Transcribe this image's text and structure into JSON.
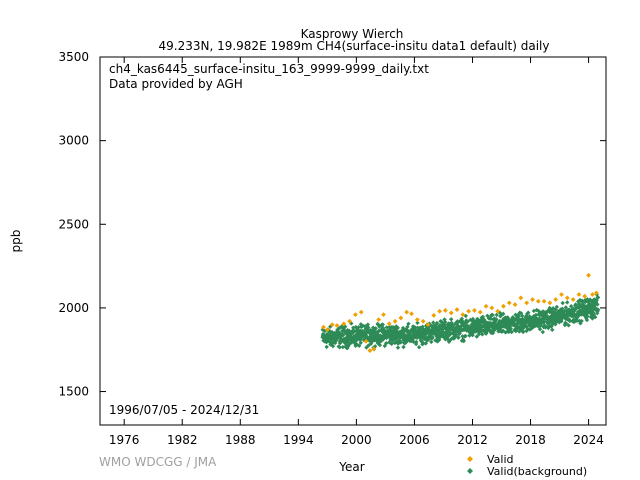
{
  "chart_data": {
    "type": "scatter",
    "title": "Kasprowy Wierch",
    "subtitle": "49.233N, 19.982E 1989m    CH4(surface-insitu data1 default) daily",
    "info_lines": [
      "ch4_kas6445_surface-insitu_163_9999-9999_daily.txt",
      "Data provided by AGH"
    ],
    "date_range": "1996/07/05 - 2024/12/31",
    "credit": "WMO WDCGG / JMA",
    "xlabel": "Year",
    "ylabel": "ppb",
    "xlim": [
      1973.5,
      2025.8
    ],
    "ylim": [
      1300,
      3500
    ],
    "xticks": [
      1976,
      1982,
      1988,
      1994,
      2000,
      2006,
      2012,
      2018,
      2024
    ],
    "yticks": [
      1500,
      2000,
      2500,
      3000,
      3500
    ],
    "legend_position": "bottom-right outside",
    "series": [
      {
        "name": "Valid",
        "color": "#f0a000",
        "x": [
          1996.6,
          1997.0,
          1997.5,
          1998.0,
          1998.7,
          1999.3,
          1999.9,
          2000.5,
          2001.0,
          2001.4,
          2001.8,
          2002.3,
          2002.8,
          2003.4,
          2004.0,
          2004.6,
          2005.2,
          2005.7,
          2006.3,
          2006.9,
          2007.4,
          2008.0,
          2008.6,
          2009.2,
          2009.8,
          2010.4,
          2011.0,
          2011.6,
          2012.2,
          2012.8,
          2013.4,
          2014.0,
          2014.6,
          2015.2,
          2015.8,
          2016.4,
          2017.0,
          2017.6,
          2018.2,
          2018.8,
          2019.4,
          2020.0,
          2020.6,
          2021.2,
          2021.8,
          2022.4,
          2023.0,
          2023.6,
          2024.0,
          2024.4,
          2024.8
        ],
        "y": [
          1885,
          1870,
          1900,
          1895,
          1905,
          1920,
          1960,
          1975,
          1800,
          1745,
          1755,
          1930,
          1960,
          1905,
          1920,
          1940,
          1975,
          1965,
          1930,
          1920,
          1900,
          1955,
          1980,
          1985,
          1970,
          1990,
          1960,
          1980,
          1985,
          1975,
          2010,
          2000,
          1980,
          2010,
          2030,
          2020,
          2060,
          2030,
          2050,
          2040,
          2040,
          2030,
          2050,
          2080,
          2060,
          2050,
          2080,
          2070,
          2195,
          2080,
          2090
        ]
      },
      {
        "name": "Valid(background)",
        "color": "#2e8b57",
        "x_start": 1996.5,
        "x_end": 2024.99,
        "trend": [
          [
            1996.5,
            1820
          ],
          [
            2000.0,
            1830
          ],
          [
            2003.0,
            1840
          ],
          [
            2006.0,
            1835
          ],
          [
            2008.0,
            1860
          ],
          [
            2012.0,
            1880
          ],
          [
            2016.0,
            1905
          ],
          [
            2020.0,
            1935
          ],
          [
            2024.99,
            2010
          ]
        ],
        "spread": 45
      }
    ]
  }
}
